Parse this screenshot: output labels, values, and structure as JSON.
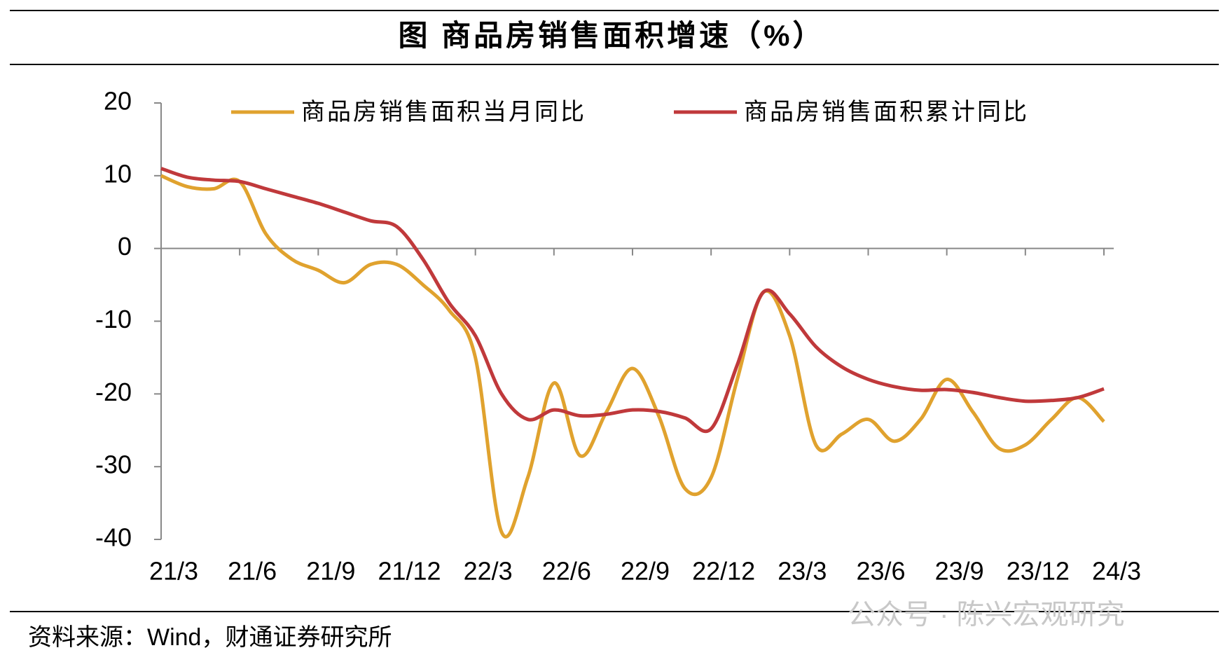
{
  "chart_data": {
    "type": "line",
    "title": "图  商品房销售面积增速（%）",
    "source": "资料来源：Wind，财通证券研究所",
    "watermark": "公众号 · 陈兴宏观研究",
    "categories": [
      "21/3",
      null,
      null,
      "21/6",
      null,
      null,
      "21/9",
      null,
      null,
      "21/12",
      null,
      null,
      "22/3",
      null,
      null,
      "22/6",
      null,
      null,
      "22/9",
      null,
      null,
      "22/12",
      null,
      null,
      "23/3",
      null,
      null,
      "23/6",
      null,
      null,
      "23/9",
      null,
      null,
      "23/12",
      null,
      null,
      "24/3"
    ],
    "series": [
      {
        "name": "商品房销售面积当月同比",
        "color": "#e0a22e",
        "values": [
          10,
          8.5,
          8.2,
          9.2,
          2,
          -1.5,
          -3,
          -4.7,
          -2.2,
          -2.2,
          -5,
          -8.5,
          -15,
          -39,
          -31.5,
          -18.5,
          -28.5,
          -22.5,
          -16.5,
          -23,
          -33,
          -31.5,
          -18,
          -6,
          -12,
          -27,
          -25.5,
          -23.5,
          -26.5,
          -23.5,
          -18,
          -22.5,
          -27.5,
          -27,
          -23.5,
          -20.5,
          -23.8
        ]
      },
      {
        "name": "商品房销售面积累计同比",
        "color": "#c0393b",
        "values": [
          11,
          9.8,
          9.4,
          9.2,
          8.2,
          7.2,
          6.2,
          5,
          3.8,
          3,
          -1.5,
          -7.5,
          -12,
          -20,
          -23.5,
          -22.2,
          -23,
          -22.8,
          -22.2,
          -22.4,
          -23.3,
          -24.8,
          -16,
          -6,
          -9,
          -13.5,
          -16.3,
          -18,
          -19,
          -19.5,
          -19.4,
          -19.8,
          -20.5,
          -21,
          -20.9,
          -20.5,
          -19.3
        ]
      }
    ],
    "ylim": [
      -40,
      20
    ],
    "yticks": [
      -40,
      -30,
      -20,
      -10,
      0,
      10,
      20
    ],
    "grid": false,
    "legend": "top"
  }
}
